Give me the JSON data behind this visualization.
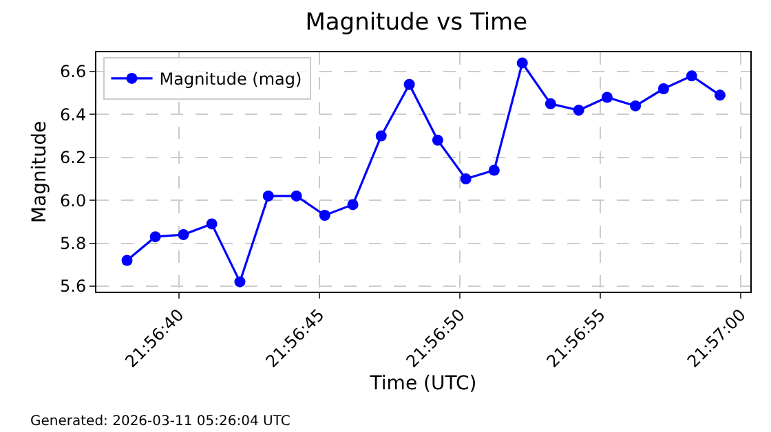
{
  "chart_data": {
    "type": "line",
    "title": "Magnitude vs Time",
    "xlabel": "Time (UTC)",
    "ylabel": "Magnitude",
    "annotations": [
      "Generated: 2026-03-11 05:26:04 UTC"
    ],
    "x": [
      21.943931,
      21.944211,
      21.944489,
      21.944769,
      21.945047,
      21.945328,
      21.945606,
      21.945886,
      21.946164,
      21.946444,
      21.946722,
      21.947003,
      21.947281,
      21.947561,
      21.947839,
      21.948119,
      21.948397,
      21.948678,
      21.948958,
      21.949236,
      21.949514,
      21.949794
    ],
    "series": [
      {
        "name": "Magnitude (mag)",
        "color": "#0000ff",
        "values": [
          5.72,
          5.83,
          5.84,
          5.89,
          5.62,
          6.02,
          6.02,
          5.93,
          5.98,
          6.3,
          6.54,
          6.28,
          6.1,
          6.14,
          6.64,
          6.45,
          6.42,
          6.48,
          6.44,
          6.52,
          6.58,
          6.49
        ]
      }
    ],
    "xlim": [
      21.943628,
      21.950094
    ],
    "xticks": [
      {
        "value": 21.944444,
        "label": "21:56:40"
      },
      {
        "value": 21.945833,
        "label": "21:56:45"
      },
      {
        "value": 21.947222,
        "label": "21:56:50"
      },
      {
        "value": 21.948611,
        "label": "21:56:55"
      },
      {
        "value": 21.95,
        "label": "21:57:00"
      }
    ],
    "ylim": [
      5.574,
      6.69
    ],
    "yticks": [
      {
        "value": 5.6,
        "label": "5.6"
      },
      {
        "value": 5.8,
        "label": "5.8"
      },
      {
        "value": 6.0,
        "label": "6.0"
      },
      {
        "value": 6.2,
        "label": "6.2"
      },
      {
        "value": 6.4,
        "label": "6.4"
      },
      {
        "value": 6.6,
        "label": "6.6"
      }
    ],
    "grid": true,
    "legend": "top left",
    "marker": "circle",
    "line_style": "solid"
  }
}
